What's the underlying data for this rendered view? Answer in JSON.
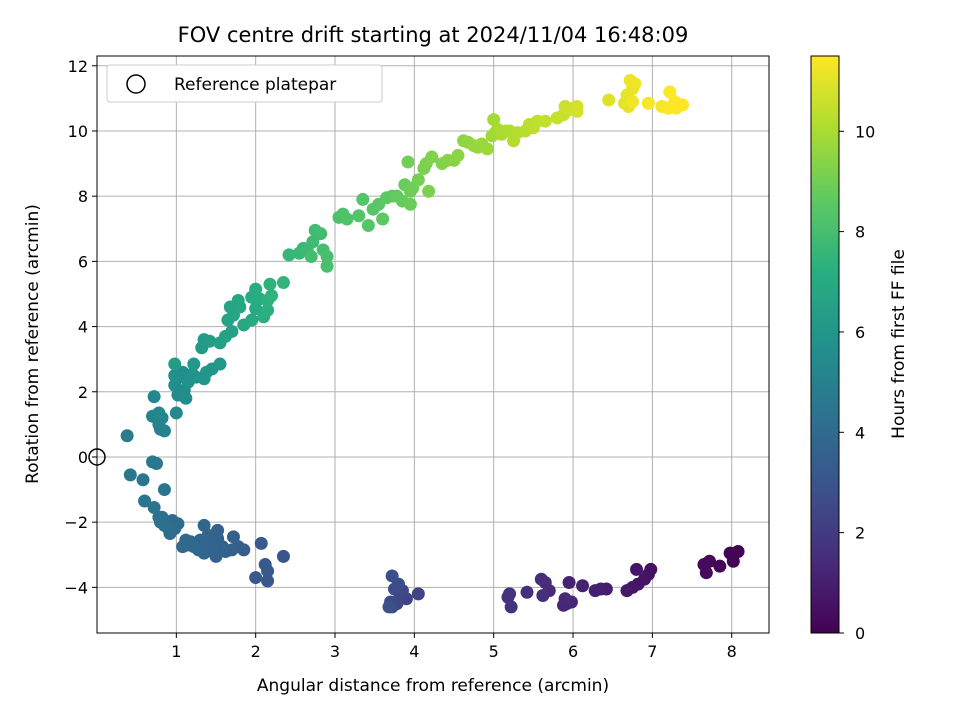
{
  "chart_data": {
    "type": "scatter",
    "title": "FOV centre drift starting at 2024/11/04 16:48:09",
    "xlabel": "Angular distance from reference (arcmin)",
    "ylabel": "Rotation from reference (arcmin)",
    "xlim": [
      0.0,
      8.47
    ],
    "ylim": [
      -5.4,
      12.3
    ],
    "xticks": [
      1,
      2,
      3,
      4,
      5,
      6,
      7,
      8
    ],
    "yticks": [
      -4,
      -2,
      0,
      2,
      4,
      6,
      8,
      10,
      12
    ],
    "grid": true,
    "legend": {
      "placement": "top-left",
      "entries": [
        "Reference platepar"
      ]
    },
    "reference_point": {
      "x": 0,
      "y": 0,
      "label": "Reference platepar"
    },
    "colorbar": {
      "label": "Hours from first FF file",
      "min": 0,
      "max": 11.5,
      "ticks": [
        0,
        2,
        4,
        6,
        8,
        10
      ],
      "colormap": "viridis"
    },
    "points": [
      [
        8.08,
        -2.9,
        0.05
      ],
      [
        7.98,
        -2.95,
        0.1
      ],
      [
        8.02,
        -3.2,
        0.15
      ],
      [
        7.85,
        -3.35,
        0.2
      ],
      [
        7.72,
        -3.2,
        0.25
      ],
      [
        7.65,
        -3.3,
        0.3
      ],
      [
        7.68,
        -3.55,
        0.35
      ],
      [
        6.98,
        -3.45,
        0.5
      ],
      [
        6.95,
        -3.6,
        0.55
      ],
      [
        6.9,
        -3.75,
        0.6
      ],
      [
        6.82,
        -3.9,
        0.65
      ],
      [
        6.8,
        -3.45,
        0.7
      ],
      [
        6.75,
        -4.0,
        0.75
      ],
      [
        6.68,
        -4.1,
        0.8
      ],
      [
        6.42,
        -4.05,
        0.95
      ],
      [
        6.35,
        -4.05,
        1.0
      ],
      [
        6.28,
        -4.1,
        1.05
      ],
      [
        6.12,
        -3.95,
        1.1
      ],
      [
        5.95,
        -3.85,
        1.15
      ],
      [
        5.92,
        -4.5,
        1.2
      ],
      [
        5.98,
        -4.45,
        1.25
      ],
      [
        5.88,
        -4.55,
        1.3
      ],
      [
        5.9,
        -4.35,
        1.35
      ],
      [
        5.7,
        -4.1,
        1.4
      ],
      [
        5.65,
        -3.85,
        1.45
      ],
      [
        5.6,
        -3.75,
        1.5
      ],
      [
        5.62,
        -4.25,
        1.55
      ],
      [
        5.42,
        -4.15,
        1.6
      ],
      [
        5.22,
        -4.6,
        1.65
      ],
      [
        5.2,
        -4.2,
        1.7
      ],
      [
        5.18,
        -4.3,
        1.75
      ],
      [
        4.05,
        -4.2,
        2.3
      ],
      [
        3.9,
        -4.35,
        2.35
      ],
      [
        3.82,
        -4.25,
        2.4
      ],
      [
        3.85,
        -4.1,
        2.45
      ],
      [
        3.78,
        -4.5,
        2.5
      ],
      [
        3.72,
        -4.6,
        2.55
      ],
      [
        3.7,
        -4.45,
        2.6
      ],
      [
        3.75,
        -4.05,
        2.65
      ],
      [
        3.8,
        -3.9,
        2.7
      ],
      [
        3.72,
        -3.65,
        2.75
      ],
      [
        3.68,
        -4.6,
        2.8
      ],
      [
        2.35,
        -3.05,
        3.05
      ],
      [
        2.15,
        -3.8,
        3.1
      ],
      [
        2.15,
        -3.5,
        3.15
      ],
      [
        2.12,
        -3.3,
        3.2
      ],
      [
        2.0,
        -3.7,
        3.25
      ],
      [
        2.07,
        -2.65,
        3.3
      ],
      [
        1.85,
        -2.85,
        3.35
      ],
      [
        1.78,
        -2.75,
        3.4
      ],
      [
        1.72,
        -2.45,
        3.45
      ],
      [
        1.7,
        -2.85,
        3.5
      ],
      [
        1.62,
        -2.9,
        3.55
      ],
      [
        1.58,
        -2.75,
        3.6
      ],
      [
        1.52,
        -2.5,
        3.62
      ],
      [
        1.52,
        -2.25,
        3.64
      ],
      [
        1.5,
        -3.05,
        3.66
      ],
      [
        1.45,
        -2.85,
        3.68
      ],
      [
        1.42,
        -2.65,
        3.7
      ],
      [
        1.4,
        -2.4,
        3.72
      ],
      [
        1.35,
        -2.95,
        3.74
      ],
      [
        1.33,
        -2.7,
        3.76
      ],
      [
        1.3,
        -2.55,
        3.78
      ],
      [
        1.28,
        -2.85,
        3.8
      ],
      [
        1.35,
        -2.1,
        3.82
      ],
      [
        1.25,
        -2.65,
        3.84
      ],
      [
        1.22,
        -2.75,
        3.86
      ],
      [
        1.18,
        -2.6,
        3.88
      ],
      [
        1.15,
        -2.7,
        3.9
      ],
      [
        1.12,
        -2.55,
        3.92
      ],
      [
        1.08,
        -2.75,
        3.94
      ],
      [
        1.02,
        -2.05,
        3.96
      ],
      [
        0.98,
        -2.2,
        3.98
      ],
      [
        0.95,
        -1.95,
        4.0
      ],
      [
        0.92,
        -2.35,
        4.05
      ],
      [
        0.9,
        -2.2,
        4.1
      ],
      [
        0.85,
        -2.1,
        4.15
      ],
      [
        0.82,
        -1.85,
        4.2
      ],
      [
        0.8,
        -2.0,
        4.25
      ],
      [
        0.78,
        -1.85,
        4.3
      ],
      [
        0.72,
        -1.55,
        4.35
      ],
      [
        0.85,
        -1.0,
        4.4
      ],
      [
        0.6,
        -1.35,
        4.45
      ],
      [
        0.58,
        -0.7,
        4.5
      ],
      [
        0.42,
        -0.55,
        4.55
      ],
      [
        0.75,
        -0.2,
        4.6
      ],
      [
        0.7,
        -0.15,
        4.65
      ],
      [
        0.38,
        0.65,
        4.75
      ],
      [
        0.8,
        0.85,
        5.0
      ],
      [
        0.85,
        0.8,
        5.05
      ],
      [
        0.78,
        1.0,
        5.1
      ],
      [
        0.82,
        1.2,
        5.15
      ],
      [
        0.7,
        1.25,
        5.2
      ],
      [
        0.78,
        1.35,
        5.25
      ],
      [
        0.72,
        1.85,
        5.3
      ],
      [
        1.0,
        1.35,
        5.4
      ],
      [
        1.02,
        1.9,
        5.45
      ],
      [
        1.12,
        1.8,
        5.5
      ],
      [
        1.1,
        2.05,
        5.55
      ],
      [
        0.98,
        2.2,
        5.6
      ],
      [
        1.05,
        2.45,
        5.65
      ],
      [
        1.08,
        2.6,
        5.7
      ],
      [
        0.98,
        2.5,
        5.75
      ],
      [
        1.2,
        2.55,
        5.8
      ],
      [
        1.15,
        2.3,
        5.85
      ],
      [
        1.25,
        2.45,
        5.9
      ],
      [
        1.38,
        2.6,
        5.95
      ],
      [
        1.35,
        2.4,
        6.0
      ],
      [
        1.45,
        2.7,
        6.05
      ],
      [
        1.55,
        2.85,
        6.1
      ],
      [
        1.22,
        2.85,
        6.15
      ],
      [
        1.32,
        3.35,
        6.2
      ],
      [
        1.35,
        3.6,
        6.25
      ],
      [
        1.42,
        3.55,
        6.3
      ],
      [
        0.98,
        2.85,
        6.35
      ],
      [
        1.55,
        3.5,
        6.5
      ],
      [
        1.62,
        3.7,
        6.55
      ],
      [
        1.7,
        3.85,
        6.6
      ],
      [
        1.65,
        4.2,
        6.65
      ],
      [
        1.72,
        4.35,
        6.7
      ],
      [
        1.68,
        4.6,
        6.75
      ],
      [
        1.8,
        4.6,
        6.8
      ],
      [
        1.78,
        4.8,
        6.85
      ],
      [
        1.85,
        4.05,
        6.9
      ],
      [
        1.95,
        4.2,
        6.95
      ],
      [
        2.0,
        4.55,
        7.0
      ],
      [
        1.95,
        4.9,
        7.05
      ],
      [
        2.05,
        4.85,
        7.1
      ],
      [
        2.0,
        5.15,
        7.15
      ],
      [
        2.1,
        4.3,
        7.2
      ],
      [
        2.15,
        4.5,
        7.25
      ],
      [
        2.15,
        4.8,
        7.3
      ],
      [
        2.18,
        5.3,
        7.35
      ],
      [
        2.2,
        4.95,
        7.4
      ],
      [
        2.35,
        5.35,
        7.45
      ],
      [
        2.42,
        6.2,
        7.6
      ],
      [
        2.55,
        6.25,
        7.65
      ],
      [
        2.6,
        6.4,
        7.7
      ],
      [
        2.65,
        6.35,
        7.75
      ],
      [
        2.72,
        6.6,
        7.8
      ],
      [
        2.75,
        6.95,
        7.85
      ],
      [
        2.82,
        6.85,
        7.9
      ],
      [
        2.7,
        6.15,
        7.95
      ],
      [
        2.85,
        6.35,
        8.0
      ],
      [
        2.9,
        6.15,
        8.05
      ],
      [
        2.9,
        5.85,
        8.1
      ],
      [
        3.05,
        7.35,
        8.15
      ],
      [
        3.1,
        7.45,
        8.2
      ],
      [
        3.15,
        7.3,
        8.25
      ],
      [
        3.3,
        7.4,
        8.3
      ],
      [
        3.35,
        7.9,
        8.35
      ],
      [
        3.42,
        7.1,
        8.4
      ],
      [
        3.48,
        7.6,
        8.45
      ],
      [
        3.55,
        7.75,
        8.5
      ],
      [
        3.6,
        7.3,
        8.55
      ],
      [
        3.65,
        7.95,
        8.6
      ],
      [
        3.72,
        8.0,
        8.65
      ],
      [
        3.78,
        8.0,
        8.7
      ],
      [
        3.85,
        7.85,
        8.75
      ],
      [
        3.88,
        8.35,
        8.8
      ],
      [
        3.95,
        7.75,
        8.85
      ],
      [
        3.95,
        8.15,
        8.9
      ],
      [
        3.98,
        8.25,
        8.95
      ],
      [
        3.92,
        9.05,
        9.0
      ],
      [
        4.05,
        8.5,
        9.05
      ],
      [
        4.12,
        8.85,
        9.1
      ],
      [
        4.18,
        8.15,
        9.15
      ],
      [
        4.15,
        9.0,
        9.2
      ],
      [
        4.22,
        9.2,
        9.25
      ],
      [
        4.35,
        9.0,
        9.3
      ],
      [
        4.42,
        9.1,
        9.35
      ],
      [
        4.5,
        9.1,
        9.4
      ],
      [
        4.55,
        9.25,
        9.45
      ],
      [
        4.62,
        9.7,
        9.5
      ],
      [
        4.68,
        9.65,
        9.55
      ],
      [
        4.75,
        9.55,
        9.6
      ],
      [
        4.8,
        9.5,
        9.65
      ],
      [
        4.85,
        9.6,
        9.7
      ],
      [
        4.92,
        9.45,
        9.75
      ],
      [
        4.98,
        9.85,
        9.8
      ],
      [
        5.02,
        9.95,
        9.85
      ],
      [
        5.0,
        10.35,
        9.9
      ],
      [
        5.05,
        10.05,
        9.95
      ],
      [
        5.1,
        9.9,
        10.0
      ],
      [
        5.15,
        10.0,
        10.05
      ],
      [
        5.2,
        10.0,
        10.1
      ],
      [
        5.25,
        9.7,
        10.15
      ],
      [
        5.3,
        9.95,
        10.2
      ],
      [
        5.4,
        10.0,
        10.25
      ],
      [
        5.45,
        10.2,
        10.3
      ],
      [
        5.5,
        10.1,
        10.35
      ],
      [
        5.55,
        10.3,
        10.4
      ],
      [
        5.65,
        10.3,
        10.45
      ],
      [
        5.8,
        10.4,
        10.5
      ],
      [
        5.88,
        10.5,
        10.55
      ],
      [
        5.9,
        10.75,
        10.6
      ],
      [
        5.95,
        10.65,
        10.65
      ],
      [
        6.0,
        10.7,
        10.7
      ],
      [
        6.05,
        10.75,
        10.75
      ],
      [
        6.05,
        10.6,
        10.8
      ],
      [
        6.45,
        10.95,
        10.95
      ],
      [
        6.65,
        10.85,
        11.0
      ],
      [
        6.68,
        11.1,
        11.05
      ],
      [
        6.7,
        10.75,
        11.1
      ],
      [
        6.75,
        11.3,
        11.15
      ],
      [
        6.72,
        11.55,
        11.2
      ],
      [
        6.78,
        11.45,
        11.25
      ],
      [
        6.75,
        10.9,
        11.3
      ],
      [
        6.95,
        10.85,
        11.35
      ],
      [
        7.12,
        10.75,
        11.4
      ],
      [
        7.2,
        10.7,
        11.42
      ],
      [
        7.22,
        11.2,
        11.44
      ],
      [
        7.28,
        10.9,
        11.46
      ],
      [
        7.3,
        10.7,
        11.48
      ],
      [
        7.35,
        10.8,
        11.5
      ],
      [
        7.38,
        10.8,
        11.5
      ]
    ]
  }
}
